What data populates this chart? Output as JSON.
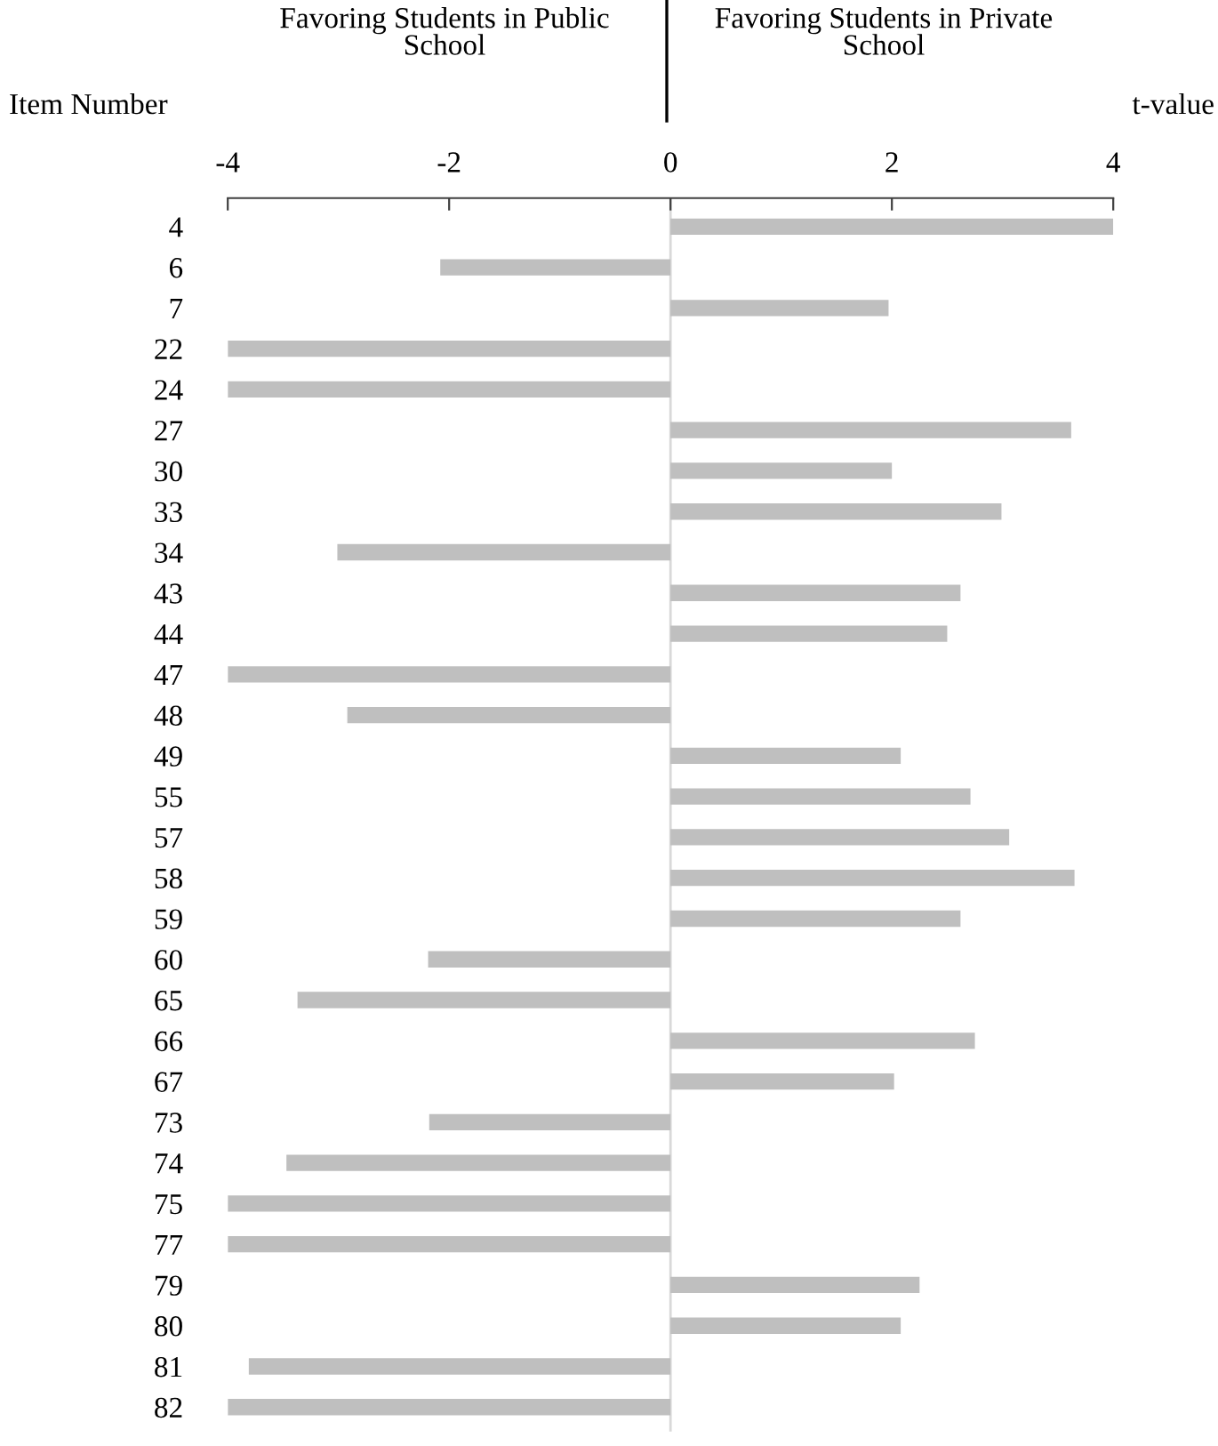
{
  "chart_data": {
    "type": "bar",
    "orientation": "horizontal",
    "categories": [
      "4",
      "6",
      "7",
      "22",
      "24",
      "27",
      "30",
      "33",
      "34",
      "43",
      "44",
      "47",
      "48",
      "49",
      "55",
      "57",
      "58",
      "59",
      "60",
      "65",
      "66",
      "67",
      "73",
      "74",
      "75",
      "77",
      "79",
      "80",
      "81",
      "82"
    ],
    "values": [
      4.0,
      -2.08,
      1.97,
      -4.0,
      -4.0,
      3.62,
      2.0,
      2.99,
      -3.01,
      2.62,
      2.5,
      -4.0,
      -2.92,
      2.08,
      2.71,
      3.06,
      3.65,
      2.62,
      -2.19,
      -3.37,
      2.75,
      2.02,
      -2.18,
      -3.47,
      -4.0,
      -4.0,
      2.25,
      2.08,
      -3.81,
      -4.0
    ],
    "color": "#bfbfbf",
    "xlim": [
      -4,
      4
    ],
    "xticks": [
      -4,
      -2,
      0,
      2,
      4
    ],
    "xlabel": "t-value",
    "ylabel": "Item Number",
    "annotations": [
      "Favoring Students in Public\nSchool",
      "Favoring Students in Private\nSchool"
    ],
    "ref_lines": [
      {
        "axis": "x",
        "value": 0,
        "color": "#d9d9d9"
      }
    ],
    "grid": false,
    "legend": false
  }
}
